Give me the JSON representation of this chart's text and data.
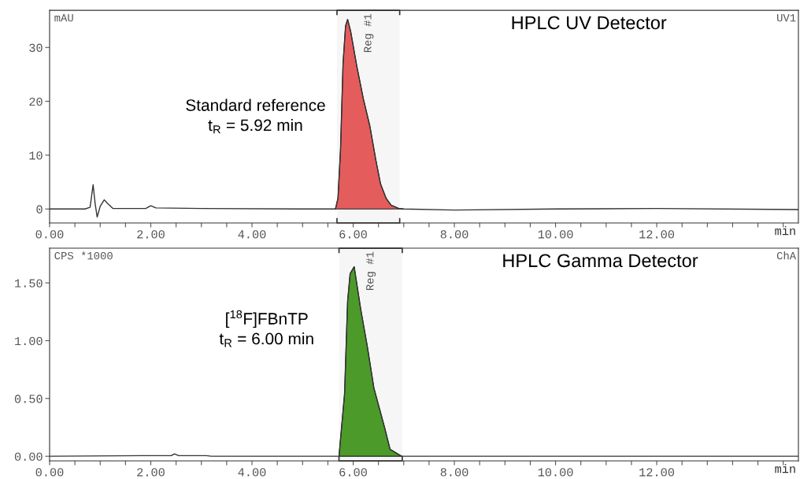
{
  "chart_data": [
    {
      "type": "line",
      "title": "HPLC UV Detector",
      "xlabel": "min",
      "ylabel": "mAU",
      "annotations": [
        "UV1",
        "Standard reference\nt$_{R}$ = 5.92 min"
      ],
      "xlim": [
        0,
        14.8
      ],
      "ylim": [
        -2.6,
        36.9
      ],
      "xticks": [
        {
          "value": 0,
          "label": "0.00"
        },
        {
          "value": 0.5,
          "label": null
        },
        {
          "value": 1,
          "label": null
        },
        {
          "value": 1.5,
          "label": null
        },
        {
          "value": 2,
          "label": "2.00"
        },
        {
          "value": 2.5,
          "label": null
        },
        {
          "value": 3,
          "label": null
        },
        {
          "value": 3.5,
          "label": null
        },
        {
          "value": 4,
          "label": "4.00"
        },
        {
          "value": 4.5,
          "label": null
        },
        {
          "value": 5,
          "label": null
        },
        {
          "value": 5.5,
          "label": null
        },
        {
          "value": 6,
          "label": "6.00"
        },
        {
          "value": 6.5,
          "label": null
        },
        {
          "value": 7,
          "label": null
        },
        {
          "value": 7.5,
          "label": null
        },
        {
          "value": 8,
          "label": "8.00"
        },
        {
          "value": 8.5,
          "label": null
        },
        {
          "value": 9,
          "label": null
        },
        {
          "value": 9.5,
          "label": null
        },
        {
          "value": 10,
          "label": "10.00"
        },
        {
          "value": 10.5,
          "label": null
        },
        {
          "value": 11,
          "label": null
        },
        {
          "value": 11.5,
          "label": null
        },
        {
          "value": 12,
          "label": "12.00"
        },
        {
          "value": 12.5,
          "label": null
        },
        {
          "value": 13,
          "label": null
        },
        {
          "value": 13.5,
          "label": null
        },
        {
          "value": 14,
          "label": null
        },
        {
          "value": 14.5,
          "label": null
        }
      ],
      "yticks": [
        0,
        10,
        20,
        30
      ],
      "bands": [
        {
          "axis": "x",
          "from": 5.68,
          "to": 6.92,
          "label": "Reg #1",
          "color": "#f6f6f6"
        }
      ],
      "series": [
        {
          "color": "#333333",
          "x": [
            0,
            0.7,
            0.8,
            0.86,
            0.9,
            0.94,
            1.0,
            1.08,
            1.15,
            1.25,
            1.9,
            2.0,
            2.1,
            3,
            5,
            5.65,
            5.7,
            5.75,
            5.8,
            5.85,
            5.89,
            5.95,
            6.07,
            6.2,
            6.33,
            6.45,
            6.54,
            6.65,
            6.75,
            6.9,
            7.0,
            8,
            10,
            12,
            14.8
          ],
          "values": [
            0,
            0,
            0.3,
            4.5,
            1,
            -1.5,
            0.5,
            1.7,
            1.0,
            0.1,
            0.1,
            0.6,
            0.2,
            0.1,
            0,
            0,
            2,
            11,
            27,
            34,
            35.2,
            33,
            26.6,
            20.5,
            15.4,
            9,
            4.7,
            2,
            0.7,
            0.1,
            0,
            -0.2,
            0,
            0.1,
            -0.1
          ]
        },
        {
          "type": "area",
          "color": "#e55c5c",
          "x": [
            5.65,
            5.7,
            5.75,
            5.8,
            5.85,
            5.89,
            5.95,
            6.07,
            6.2,
            6.33,
            6.45,
            6.54,
            6.65,
            6.75,
            6.9,
            7.0
          ],
          "values": [
            0,
            2,
            11,
            27,
            34,
            35.2,
            33,
            26.6,
            20.5,
            15.4,
            9,
            4.7,
            2,
            0.7,
            0.1,
            0
          ]
        }
      ]
    },
    {
      "type": "line",
      "title": "HPLC Gamma Detector",
      "xlabel": "min",
      "ylabel": "CPS *1000",
      "annotations": [
        "ChA",
        "[$^{18}$F]FBnTP\nt$_{R}$ = 6.00 min"
      ],
      "xlim": [
        0,
        14.8
      ],
      "ylim": [
        -0.04,
        1.8
      ],
      "xticks": [
        {
          "value": 0,
          "label": "0.00"
        },
        {
          "value": 0.5,
          "label": null
        },
        {
          "value": 1,
          "label": null
        },
        {
          "value": 1.5,
          "label": null
        },
        {
          "value": 2,
          "label": "2.00"
        },
        {
          "value": 2.5,
          "label": null
        },
        {
          "value": 3,
          "label": null
        },
        {
          "value": 3.5,
          "label": null
        },
        {
          "value": 4,
          "label": "4.00"
        },
        {
          "value": 4.5,
          "label": null
        },
        {
          "value": 5,
          "label": null
        },
        {
          "value": 5.5,
          "label": null
        },
        {
          "value": 6,
          "label": "6.00"
        },
        {
          "value": 6.5,
          "label": null
        },
        {
          "value": 7,
          "label": null
        },
        {
          "value": 7.5,
          "label": null
        },
        {
          "value": 8,
          "label": "8.00"
        },
        {
          "value": 8.5,
          "label": null
        },
        {
          "value": 9,
          "label": null
        },
        {
          "value": 9.5,
          "label": null
        },
        {
          "value": 10,
          "label": "10.00"
        },
        {
          "value": 10.5,
          "label": null
        },
        {
          "value": 11,
          "label": null
        },
        {
          "value": 11.5,
          "label": null
        },
        {
          "value": 12,
          "label": "12.00"
        },
        {
          "value": 12.5,
          "label": null
        },
        {
          "value": 13,
          "label": null
        },
        {
          "value": 13.5,
          "label": null
        },
        {
          "value": 14,
          "label": null
        },
        {
          "value": 14.5,
          "label": null
        }
      ],
      "yticks": [
        {
          "value": 0,
          "label": "0.00"
        },
        {
          "value": 0.5,
          "label": "0.50"
        },
        {
          "value": 1,
          "label": "1.00"
        },
        {
          "value": 1.5,
          "label": "1.50"
        }
      ],
      "bands": [
        {
          "axis": "x",
          "from": 5.72,
          "to": 6.97,
          "label": "Reg #1",
          "color": "#f6f6f6"
        }
      ],
      "series": [
        {
          "color": "#333333",
          "x": [
            0,
            1.8,
            2.4,
            2.47,
            2.55,
            3.1,
            3.2,
            5.7,
            5.72,
            5.83,
            5.89,
            5.94,
            6.02,
            6.15,
            6.28,
            6.41,
            6.62,
            6.73,
            6.96,
            7.0,
            14.8
          ],
          "values": [
            0,
            0.005,
            0.005,
            0.02,
            0.005,
            0.005,
            0,
            0,
            0,
            0.54,
            1.34,
            1.58,
            1.64,
            1.27,
            0.95,
            0.59,
            0.25,
            0.06,
            0,
            0,
            0
          ]
        },
        {
          "type": "area",
          "color": "#4c9a2a",
          "x": [
            5.72,
            5.83,
            5.89,
            5.94,
            6.02,
            6.15,
            6.28,
            6.41,
            6.62,
            6.73,
            6.96
          ],
          "values": [
            0,
            0.54,
            1.34,
            1.58,
            1.64,
            1.27,
            0.95,
            0.59,
            0.25,
            0.06,
            0
          ]
        }
      ]
    }
  ]
}
